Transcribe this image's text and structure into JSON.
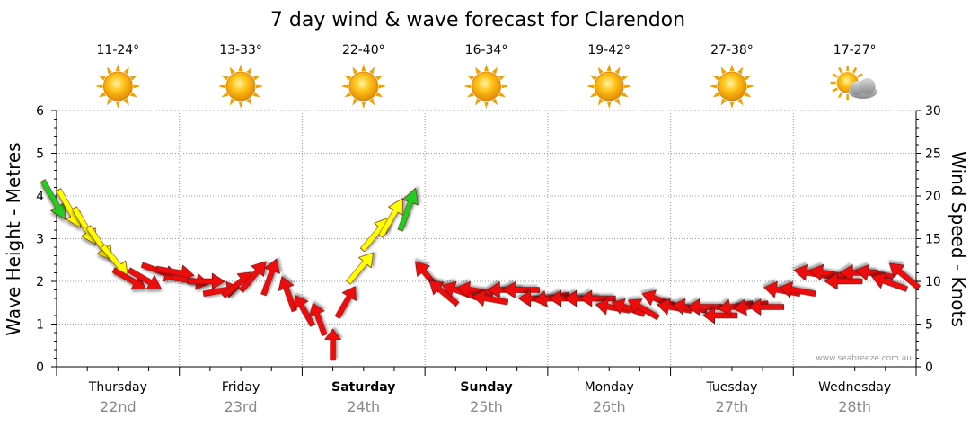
{
  "chart_data": {
    "type": "line",
    "title": "7 day wind & wave forecast for Clarendon",
    "ylabel": "Wave Height - Metres",
    "y2label": "Wind Speed - Knots",
    "ylim": [
      0,
      6
    ],
    "y2lim": [
      0,
      30
    ],
    "yticks": [
      "0",
      "1",
      "2",
      "3",
      "4",
      "5",
      "6"
    ],
    "y2ticks": [
      "0",
      "5",
      "10",
      "15",
      "20",
      "25",
      "30"
    ],
    "grid": true,
    "watermark": "www.seabreeze.com.au",
    "days": [
      {
        "name": "Thursday",
        "date": "22nd",
        "bold": false,
        "temp": "11-24°",
        "icon": "sun-icon"
      },
      {
        "name": "Friday",
        "date": "23rd",
        "bold": false,
        "temp": "13-33°",
        "icon": "sun-icon"
      },
      {
        "name": "Saturday",
        "date": "24th",
        "bold": true,
        "temp": "22-40°",
        "icon": "sun-icon"
      },
      {
        "name": "Sunday",
        "date": "25th",
        "bold": true,
        "temp": "16-34°",
        "icon": "sun-icon"
      },
      {
        "name": "Monday",
        "date": "26th",
        "bold": false,
        "temp": "19-42°",
        "icon": "sun-icon"
      },
      {
        "name": "Tuesday",
        "date": "27th",
        "bold": false,
        "temp": "27-38°",
        "icon": "sun-icon"
      },
      {
        "name": "Wednesday",
        "date": "28th",
        "bold": false,
        "temp": "17-27°",
        "icon": "sun-cloud-icon"
      }
    ],
    "wind_speed_colors": {
      "low": "#ee1111",
      "mid": "#ffff00",
      "high": "#22cc22"
    },
    "wind_series": {
      "name": "Wind",
      "hours": [
        0,
        3,
        6,
        9,
        12,
        15,
        18,
        21,
        24,
        27,
        30,
        33,
        36,
        39,
        42,
        45,
        48,
        51,
        54,
        57,
        60,
        63,
        66,
        69,
        72,
        75,
        78,
        81,
        84,
        87,
        90,
        93,
        96,
        99,
        102,
        105,
        108,
        111,
        114,
        117,
        120,
        123,
        126,
        129,
        132,
        135,
        138,
        141,
        144,
        147,
        150,
        153,
        156,
        159,
        162,
        165
      ],
      "speed_knots": [
        19,
        18,
        16,
        14,
        12,
        10,
        10,
        11,
        11,
        10,
        10,
        9,
        10,
        11,
        11,
        9,
        7,
        6,
        3,
        8,
        12,
        16,
        18,
        19,
        11,
        9,
        9,
        9,
        8,
        9,
        9,
        8,
        8,
        8,
        8,
        8,
        7,
        7,
        7,
        8,
        7,
        7,
        7,
        6,
        7,
        7,
        7,
        9,
        9,
        11,
        11,
        10,
        11,
        11,
        10,
        11
      ],
      "direction_deg": [
        330,
        330,
        330,
        325,
        320,
        300,
        300,
        290,
        280,
        280,
        270,
        260,
        230,
        220,
        200,
        160,
        150,
        160,
        180,
        210,
        220,
        220,
        210,
        200,
        140,
        130,
        110,
        100,
        100,
        90,
        90,
        90,
        80,
        90,
        90,
        90,
        100,
        110,
        120,
        110,
        100,
        100,
        90,
        90,
        80,
        80,
        90,
        100,
        100,
        100,
        100,
        90,
        90,
        100,
        110,
        130
      ]
    }
  }
}
